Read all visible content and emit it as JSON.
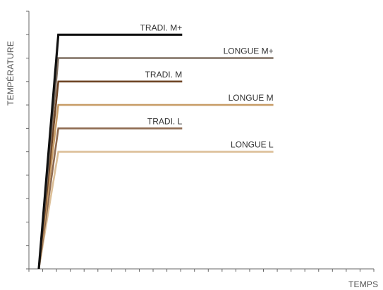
{
  "chart_data": {
    "type": "line",
    "xlabel": "TEMPS",
    "ylabel": "TEMPÉRATURE",
    "xlim": [
      0,
      25
    ],
    "ylim": [
      0,
      11
    ],
    "grid": false,
    "series": [
      {
        "name": "TRADI. M+",
        "color": "#111111",
        "x": [
          0,
          1.5,
          11
        ],
        "y": [
          0,
          10,
          10
        ]
      },
      {
        "name": "LONGUE M+",
        "color": "#7f6e60",
        "x": [
          0,
          1.5,
          18
        ],
        "y": [
          0,
          9,
          9
        ]
      },
      {
        "name": "TRADI. M",
        "color": "#6e4424",
        "x": [
          0,
          1.5,
          11
        ],
        "y": [
          0,
          8,
          8
        ]
      },
      {
        "name": "LONGUE M",
        "color": "#c89d68",
        "x": [
          0,
          1.5,
          18
        ],
        "y": [
          0,
          7,
          7
        ]
      },
      {
        "name": "TRADI. L",
        "color": "#8e6a50",
        "x": [
          0,
          1.5,
          11
        ],
        "y": [
          0,
          6,
          6
        ]
      },
      {
        "name": "LONGUE L",
        "color": "#dcbf98",
        "x": [
          0,
          1.5,
          18
        ],
        "y": [
          0,
          5,
          5
        ]
      }
    ]
  }
}
